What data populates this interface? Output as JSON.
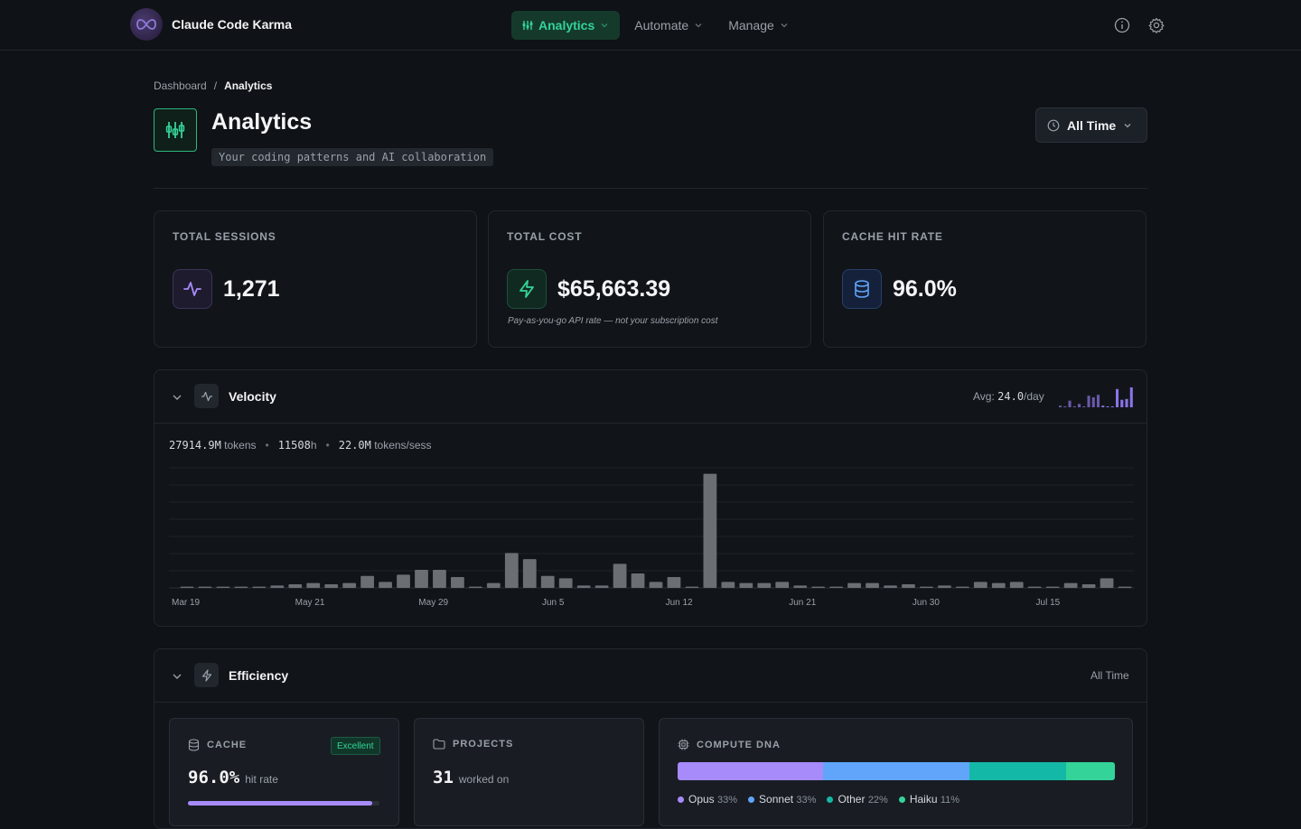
{
  "brand": {
    "name": "Claude Code Karma"
  },
  "nav": {
    "items": [
      {
        "label": "Analytics",
        "active": true
      },
      {
        "label": "Automate",
        "active": false
      },
      {
        "label": "Manage",
        "active": false
      }
    ],
    "right_icons": [
      "info-icon",
      "gear-icon"
    ]
  },
  "breadcrumb": {
    "root": "Dashboard",
    "separator": "/",
    "current": "Analytics"
  },
  "header": {
    "title": "Analytics",
    "subtitle": "Your coding patterns and AI collaboration",
    "time_range": "All Time"
  },
  "stats": {
    "sessions": {
      "label": "TOTAL SESSIONS",
      "value": "1,271",
      "icon": "activity-icon",
      "color": "#a78bfa"
    },
    "cost": {
      "label": "TOTAL COST",
      "value": "$65,663.39",
      "note": "Pay-as-you-go API rate — not your subscription cost",
      "icon": "zap-icon",
      "color": "#34d399"
    },
    "cache": {
      "label": "CACHE HIT RATE",
      "value": "96.0%",
      "icon": "database-icon",
      "color": "#60a5fa"
    }
  },
  "velocity": {
    "title": "Velocity",
    "avg_label": "Avg:",
    "avg_value": "24.0",
    "avg_unit": "/day",
    "tokens_value": "27914.9M",
    "tokens_label": "tokens",
    "hours_value": "11508",
    "hours_unit": "h",
    "per_session_value": "22.0M",
    "per_session_label": "tokens/sess",
    "sparkline": [
      2,
      0,
      8,
      1,
      4,
      1,
      14,
      12,
      15,
      2,
      1,
      0,
      22,
      9,
      10,
      24
    ]
  },
  "chart_data": {
    "type": "bar",
    "x_ticks": [
      "Mar 19",
      "May 21",
      "May 29",
      "Jun 5",
      "Jun 12",
      "Jun 21",
      "Jun 30",
      "Jul 15"
    ],
    "values": [
      1,
      1,
      1,
      1,
      1,
      2,
      3,
      4,
      3,
      4,
      10,
      5,
      11,
      15,
      15,
      9,
      1,
      4,
      29,
      24,
      10,
      8,
      2,
      2,
      20,
      12,
      5,
      9,
      1,
      95,
      5,
      4,
      4,
      5,
      2,
      1,
      1,
      4,
      4,
      2,
      3,
      1,
      2,
      1,
      5,
      4,
      5,
      1,
      1,
      4,
      3,
      8,
      1
    ],
    "ylim": [
      0,
      100
    ],
    "grid": true,
    "color": "#6b6e73"
  },
  "efficiency": {
    "title": "Efficiency",
    "range": "All Time",
    "cache": {
      "label": "CACHE",
      "badge": "Excellent",
      "value": "96.0%",
      "unit": "hit rate",
      "fill": 0.96
    },
    "projects": {
      "label": "PROJECTS",
      "value": "31",
      "unit": "worked on"
    },
    "dna": {
      "label": "COMPUTE DNA",
      "segments": [
        {
          "name": "Opus",
          "pct": "33%",
          "share": 33,
          "color": "#a78bfa"
        },
        {
          "name": "Sonnet",
          "pct": "33%",
          "share": 33,
          "color": "#60a5fa"
        },
        {
          "name": "Other",
          "pct": "22%",
          "share": 22,
          "color": "#14b8a6"
        },
        {
          "name": "Haiku",
          "pct": "11%",
          "share": 11,
          "color": "#34d399"
        }
      ]
    }
  }
}
